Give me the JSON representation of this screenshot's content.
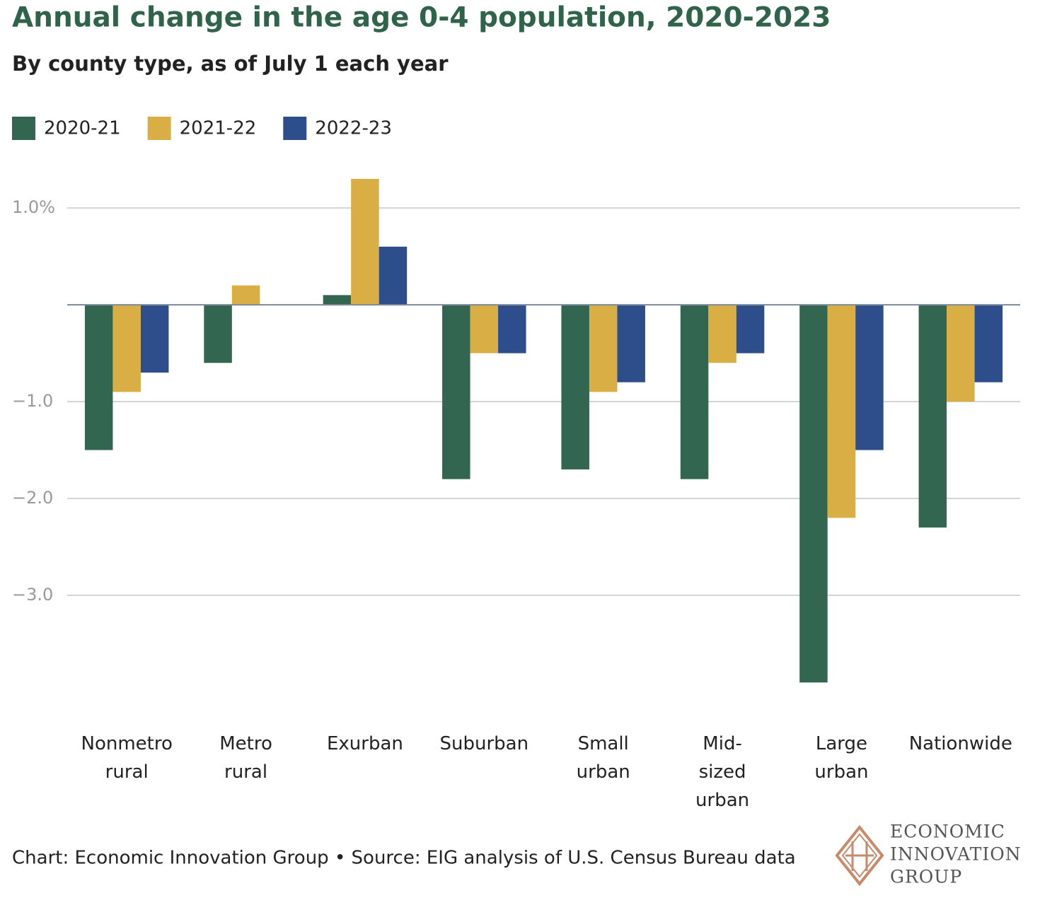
{
  "chart_data": {
    "type": "bar",
    "title": "Annual change in the age 0-4 population, 2020-2023",
    "subtitle": "By county type, as of July 1 each year",
    "categories": [
      "Nonmetro rural",
      "Metro rural",
      "Exurban",
      "Suburban",
      "Small urban",
      "Mid-sized urban",
      "Large urban",
      "Nationwide"
    ],
    "series": [
      {
        "name": "2020-21",
        "color": "#336650",
        "values": [
          -1.5,
          -0.6,
          0.1,
          -1.8,
          -1.7,
          -1.8,
          -3.9,
          -2.3
        ]
      },
      {
        "name": "2021-22",
        "color": "#d9ae45",
        "values": [
          -0.9,
          0.2,
          1.3,
          -0.5,
          -0.9,
          -0.6,
          -2.2,
          -1.0
        ]
      },
      {
        "name": "2022-23",
        "color": "#2d4e8a",
        "values": [
          -0.7,
          0,
          0.6,
          -0.5,
          -0.8,
          -0.5,
          -1.5,
          -0.8
        ]
      }
    ],
    "ylim": [
      -4,
      1.3
    ],
    "yticks": [
      {
        "value": 1,
        "label": "1.0%"
      },
      {
        "value": -1,
        "label": "−1.0"
      },
      {
        "value": -2,
        "label": "−2.0"
      },
      {
        "value": -3,
        "label": "−3.0"
      }
    ],
    "grid": true,
    "legend": "top-left",
    "footer": "Chart: Economic Innovation Group • Source: EIG analysis of U.S. Census Bureau data",
    "logo": [
      "ECONOMIC",
      "INNOVATION",
      "GROUP"
    ]
  }
}
